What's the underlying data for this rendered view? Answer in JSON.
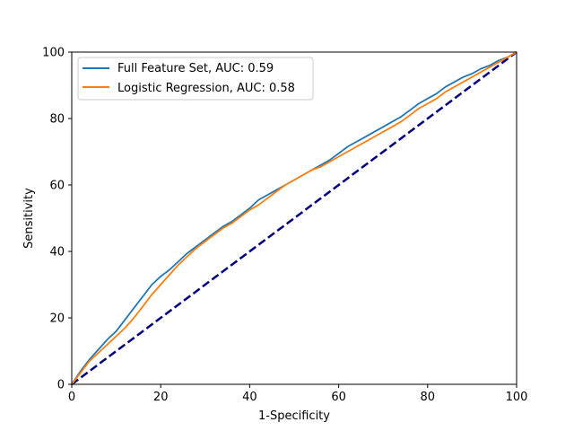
{
  "chart_data": {
    "type": "line",
    "title": "",
    "xlabel": "1-Specificity",
    "ylabel": "Sensitivity",
    "xlim": [
      0,
      100
    ],
    "ylim": [
      0,
      100
    ],
    "xticks": [
      0,
      20,
      40,
      60,
      80,
      100
    ],
    "yticks": [
      0,
      20,
      40,
      60,
      80,
      100
    ],
    "grid": false,
    "legend_position": "upper-left",
    "series": [
      {
        "name": "Full Feature Set, AUC: 0.59",
        "color": "#1f77b4",
        "x": [
          0,
          2,
          4,
          6,
          8,
          10,
          12,
          14,
          16,
          18,
          20,
          22,
          24,
          26,
          28,
          30,
          32,
          34,
          36,
          38,
          40,
          42,
          44,
          46,
          48,
          50,
          52,
          54,
          56,
          58,
          60,
          62,
          64,
          66,
          68,
          70,
          72,
          74,
          76,
          78,
          80,
          82,
          84,
          86,
          88,
          90,
          92,
          94,
          96,
          98,
          100
        ],
        "y": [
          0,
          4,
          7.5,
          10.5,
          13.5,
          16,
          19.5,
          23,
          26.5,
          30,
          32.5,
          34.5,
          37,
          39.5,
          41.5,
          43.5,
          45.5,
          47.5,
          49,
          51,
          53,
          55.5,
          57,
          58.5,
          60,
          61.5,
          63,
          64.5,
          66,
          67.5,
          69.5,
          71.5,
          73,
          74.5,
          76,
          77.5,
          79,
          80.5,
          82.5,
          84.5,
          86,
          87.5,
          89.5,
          91,
          92.5,
          93.5,
          95,
          96,
          97.5,
          98.5,
          100
        ]
      },
      {
        "name": "Logistic Regression, AUC: 0.58",
        "color": "#ff7f0e",
        "x": [
          0,
          2,
          4,
          6,
          8,
          10,
          12,
          14,
          16,
          18,
          20,
          22,
          24,
          26,
          28,
          30,
          32,
          34,
          36,
          38,
          40,
          42,
          44,
          46,
          48,
          50,
          52,
          54,
          56,
          58,
          60,
          62,
          64,
          66,
          68,
          70,
          72,
          74,
          76,
          78,
          80,
          82,
          84,
          86,
          88,
          90,
          92,
          94,
          96,
          98,
          100
        ],
        "y": [
          0,
          3.5,
          7,
          9.5,
          12,
          14.5,
          17,
          20,
          23.5,
          27,
          30,
          33,
          36,
          38.5,
          41,
          43,
          45,
          47,
          48.5,
          50.5,
          52.5,
          54,
          56,
          58,
          60,
          61.5,
          63,
          64.5,
          65.5,
          67,
          68.5,
          70,
          71.5,
          73,
          74.5,
          76,
          77.5,
          79,
          81,
          83,
          84.5,
          86,
          88,
          89.5,
          91,
          92.5,
          94,
          95.5,
          97,
          98.5,
          100
        ]
      },
      {
        "name": "",
        "color": "#000080",
        "dash": "dashed",
        "x": [
          0,
          100
        ],
        "y": [
          0,
          100
        ]
      }
    ]
  }
}
